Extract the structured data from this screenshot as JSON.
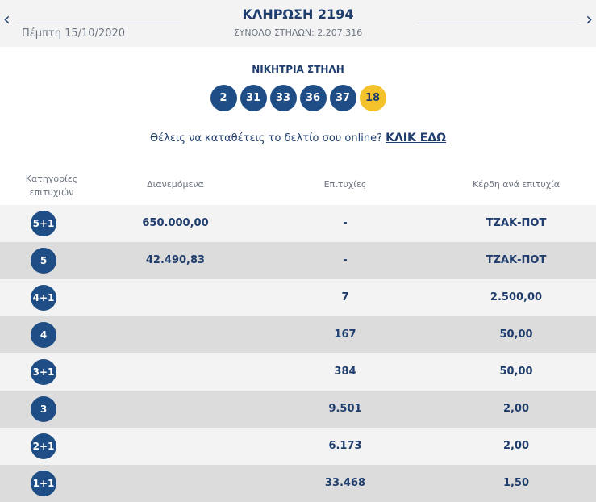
{
  "header": {
    "prev_arrow": "‹",
    "next_arrow": "›",
    "date": "Πέμπτη 15/10/2020",
    "draw_title": "ΚΛΗΡΩΣΗ 2194",
    "total_columns": "ΣΥΝΟΛΟ ΣΤΗΛΩΝ: 2.207.316"
  },
  "winning": {
    "label": "ΝΙΚΗΤΡΙΑ ΣΤΗΛΗ",
    "numbers": [
      "2",
      "31",
      "33",
      "36",
      "37"
    ],
    "joker": "18"
  },
  "online": {
    "text": "Θέλεις να καταθέτεις το δελτίο σου online? ",
    "link": "ΚΛΙΚ ΕΔΩ"
  },
  "table": {
    "headers": {
      "category": "Κατηγορίες επιτυχιών",
      "distributed": "Διανεμόμενα",
      "winners": "Επιτυχίες",
      "prize": "Κέρδη ανά επιτυχία"
    },
    "rows": [
      {
        "category": "5+1",
        "distributed": "650.000,00",
        "winners": "-",
        "prize": "ΤΖΑΚ-ΠΟΤ"
      },
      {
        "category": "5",
        "distributed": "42.490,83",
        "winners": "-",
        "prize": "ΤΖΑΚ-ΠΟΤ"
      },
      {
        "category": "4+1",
        "distributed": "",
        "winners": "7",
        "prize": "2.500,00"
      },
      {
        "category": "4",
        "distributed": "",
        "winners": "167",
        "prize": "50,00"
      },
      {
        "category": "3+1",
        "distributed": "",
        "winners": "384",
        "prize": "50,00"
      },
      {
        "category": "3",
        "distributed": "",
        "winners": "9.501",
        "prize": "2,00"
      },
      {
        "category": "2+1",
        "distributed": "",
        "winners": "6.173",
        "prize": "2,00"
      },
      {
        "category": "1+1",
        "distributed": "",
        "winners": "33.468",
        "prize": "1,50"
      }
    ]
  },
  "colors": {
    "primary": "#1f4d86",
    "joker": "#f4c22b",
    "row_light": "#f3f3f3",
    "row_dark": "#dcdcdc"
  }
}
